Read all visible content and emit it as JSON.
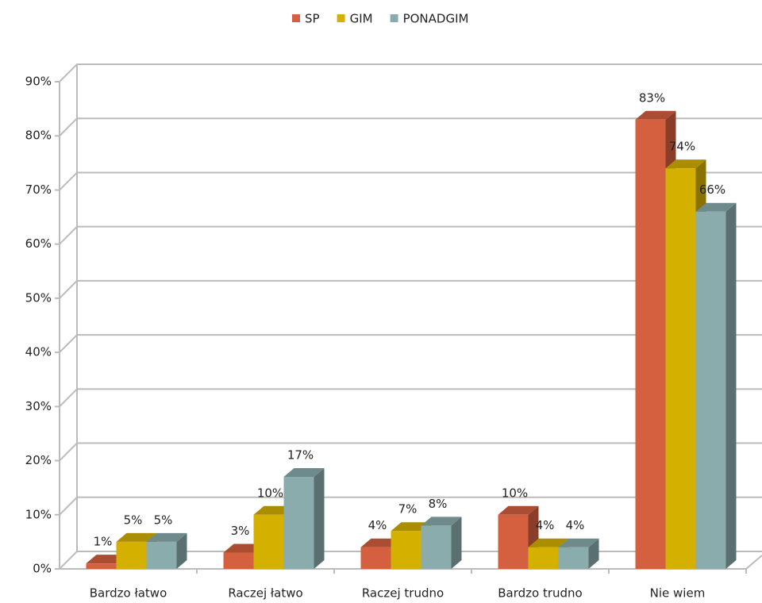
{
  "chart_data": {
    "type": "bar3d",
    "categories": [
      "Bardzo łatwo",
      "Raczej łatwo",
      "Raczej trudno",
      "Bardzo trudno",
      "Nie wiem"
    ],
    "series": [
      {
        "name": "SP",
        "color": "#d4603f",
        "values": [
          1,
          3,
          4,
          10,
          83
        ],
        "value_labels": [
          "1%",
          "3%",
          "4%",
          "10%",
          "83%"
        ]
      },
      {
        "name": "GIM",
        "color": "#d4b000",
        "values": [
          5,
          10,
          7,
          4,
          74
        ],
        "value_labels": [
          "5%",
          "10%",
          "7%",
          "4%",
          "74%"
        ]
      },
      {
        "name": "PONADGIM",
        "color": "#8aacac",
        "values": [
          5,
          17,
          8,
          4,
          66
        ],
        "value_labels": [
          "5%",
          "17%",
          "8%",
          "4%",
          "66%"
        ]
      }
    ],
    "ylim": [
      0,
      90
    ],
    "yticks": [
      {
        "value": 0,
        "label": "0%"
      },
      {
        "value": 10,
        "label": "10%"
      },
      {
        "value": 20,
        "label": "20%"
      },
      {
        "value": 30,
        "label": "30%"
      },
      {
        "value": 40,
        "label": "40%"
      },
      {
        "value": 50,
        "label": "50%"
      },
      {
        "value": 60,
        "label": "60%"
      },
      {
        "value": 70,
        "label": "70%"
      },
      {
        "value": 80,
        "label": "80%"
      },
      {
        "value": 90,
        "label": "90%"
      }
    ],
    "grid": true,
    "legend": "top"
  }
}
